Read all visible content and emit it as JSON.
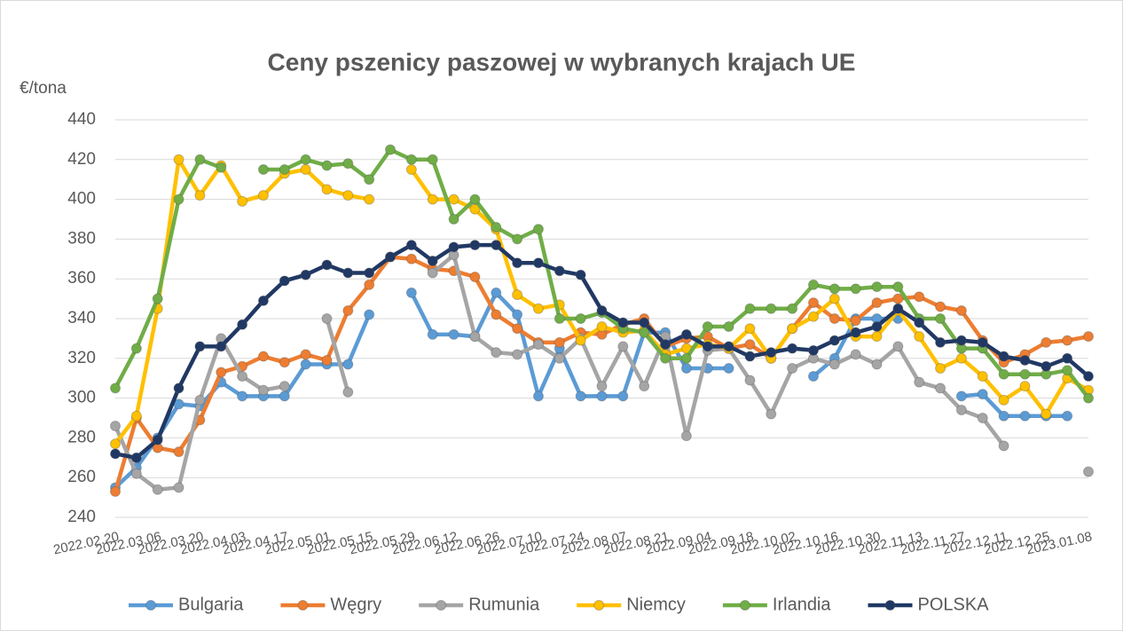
{
  "chart_data": {
    "type": "line",
    "title": "Ceny pszenicy paszowej w wybranych krajach UE",
    "y_label": "€/tona",
    "categories": [
      "2022.02.20",
      null,
      "2022.03.06",
      null,
      "2022.03.20",
      null,
      "2022.04.03",
      null,
      "2022.04.17",
      null,
      "2022.05.01",
      null,
      "2022.05.15",
      null,
      "2022.05.29",
      null,
      "2022.06.12",
      null,
      "2022.06.26",
      null,
      "2022.07.10",
      null,
      "2022.07.24",
      null,
      "2022.08.07",
      null,
      "2022.08.21",
      null,
      "2022.09.04",
      null,
      "2022.09.18",
      null,
      "2022.10.02",
      null,
      "2022.10.16",
      null,
      "2022.10.30",
      null,
      "2022.11.13",
      null,
      "2022.11.27",
      null,
      "2022.12.11",
      null,
      "2022.12.25",
      null,
      "2023.01.08"
    ],
    "series": [
      {
        "name": "Bulgaria",
        "color": "#5b9bd5",
        "values": [
          255,
          265,
          280,
          297,
          296,
          308,
          301,
          301,
          301,
          317,
          317,
          317,
          342,
          null,
          353,
          332,
          332,
          331,
          353,
          342,
          301,
          325,
          301,
          301,
          301,
          333,
          333,
          315,
          315,
          315,
          null,
          null,
          null,
          311,
          320,
          340,
          340,
          340,
          null,
          null,
          301,
          302,
          291,
          291,
          291,
          291,
          null
        ]
      },
      {
        "name": "Węgry",
        "color": "#ed7d31",
        "values": [
          253,
          290,
          275,
          273,
          289,
          313,
          316,
          321,
          318,
          322,
          319,
          344,
          357,
          371,
          370,
          365,
          364,
          361,
          342,
          335,
          328,
          328,
          333,
          332,
          337,
          340,
          326,
          330,
          331,
          325,
          327,
          320,
          335,
          348,
          340,
          339,
          348,
          350,
          351,
          346,
          344,
          329,
          318,
          322,
          328,
          329,
          331
        ]
      },
      {
        "name": "Rumunia",
        "color": "#a5a5a5",
        "values": [
          286,
          262,
          254,
          255,
          299,
          330,
          311,
          304,
          306,
          null,
          340,
          303,
          null,
          null,
          null,
          363,
          372,
          331,
          323,
          322,
          327,
          320,
          330,
          306,
          326,
          306,
          331,
          281,
          324,
          325,
          309,
          292,
          315,
          320,
          317,
          322,
          317,
          326,
          308,
          305,
          294,
          290,
          276,
          null,
          null,
          null,
          263
        ]
      },
      {
        "name": "Niemcy",
        "color": "#ffc000",
        "values": [
          277,
          291,
          345,
          420,
          402,
          417,
          399,
          402,
          413,
          415,
          405,
          402,
          400,
          null,
          415,
          400,
          400,
          395,
          385,
          352,
          345,
          347,
          329,
          336,
          333,
          334,
          322,
          325,
          327,
          325,
          335,
          320,
          335,
          341,
          350,
          331,
          331,
          344,
          331,
          315,
          320,
          311,
          299,
          306,
          292,
          310,
          304
        ]
      },
      {
        "name": "Irlandia",
        "color": "#70ad47",
        "values": [
          305,
          325,
          350,
          400,
          420,
          416,
          null,
          415,
          415,
          420,
          417,
          418,
          410,
          425,
          420,
          420,
          390,
          400,
          386,
          380,
          385,
          340,
          340,
          343,
          335,
          333,
          320,
          320,
          336,
          336,
          345,
          345,
          345,
          357,
          355,
          355,
          356,
          356,
          340,
          340,
          325,
          325,
          312,
          312,
          312,
          314,
          300
        ]
      },
      {
        "name": "POLSKA",
        "color": "#203864",
        "values": [
          272,
          270,
          279,
          305,
          326,
          326,
          337,
          349,
          359,
          362,
          367,
          363,
          363,
          371,
          377,
          369,
          376,
          377,
          377,
          368,
          368,
          364,
          362,
          344,
          338,
          338,
          327,
          332,
          326,
          326,
          321,
          323,
          325,
          324,
          329,
          333,
          336,
          345,
          338,
          328,
          329,
          328,
          321,
          319,
          316,
          320,
          311
        ]
      }
    ],
    "ylim": [
      240,
      440
    ],
    "yticks": [
      240,
      260,
      280,
      300,
      320,
      340,
      360,
      380,
      400,
      420,
      440
    ],
    "grid": true,
    "legend": "bottom"
  }
}
